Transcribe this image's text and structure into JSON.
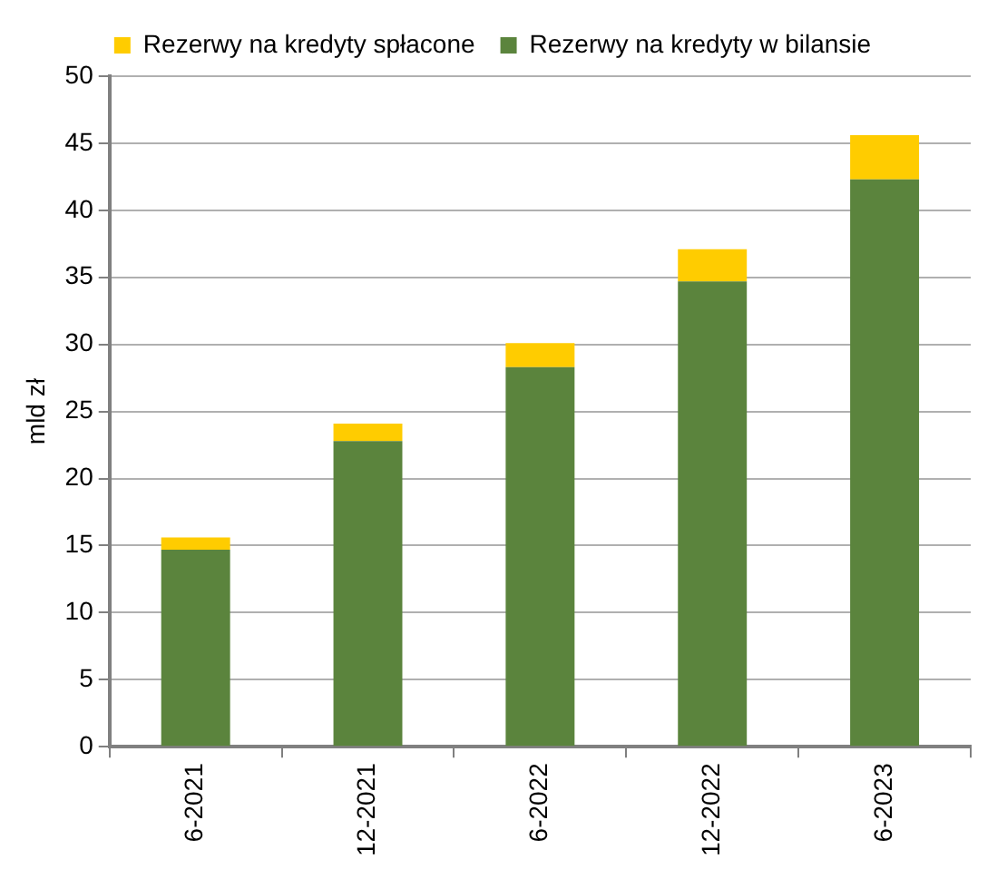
{
  "chart_data": {
    "type": "bar",
    "ylabel": "mld zł",
    "categories": [
      "6-2021",
      "12-2021",
      "6-2022",
      "12-2022",
      "6-2023"
    ],
    "series": [
      {
        "name": "Rezerwy na kredyty w bilansie",
        "color": "#5b843d",
        "values": [
          14.7,
          22.8,
          28.3,
          34.7,
          42.3
        ]
      },
      {
        "name": "Rezerwy na kredyty spłacone",
        "color": "#ffcc00",
        "values": [
          0.9,
          1.3,
          1.8,
          2.4,
          3.3
        ]
      }
    ],
    "stacked": true,
    "ylim": [
      0,
      50
    ],
    "yticks": [
      0,
      5,
      10,
      15,
      20,
      25,
      30,
      35,
      40,
      45,
      50
    ],
    "grid": "y",
    "legend": "top"
  }
}
